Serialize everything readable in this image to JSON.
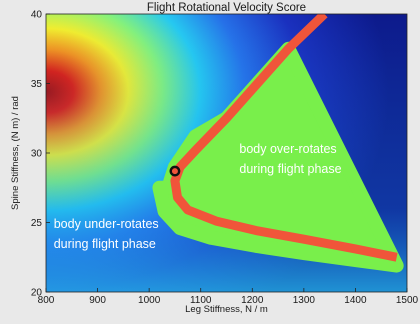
{
  "chart_data": {
    "type": "heatmap",
    "title": "Flight Rotational Velocity Score",
    "xlabel": "Leg Stiffness, N / m",
    "ylabel": "Spine Stiffness, (N m) / rad",
    "xlim": [
      800,
      1500
    ],
    "ylim": [
      20,
      40
    ],
    "xticks": [
      "800",
      "900",
      "1000",
      "1100",
      "1200",
      "1300",
      "1400",
      "1500"
    ],
    "yticks": [
      "20",
      "25",
      "30",
      "35",
      "40"
    ],
    "colormap": "jet",
    "colors": {
      "optimal_line": "#f0553a",
      "tolerance_band": "#79ef4b",
      "marker": "#111111"
    },
    "optimal_curve": {
      "name": "",
      "x": [
        1340,
        1270,
        1210,
        1150,
        1090,
        1060,
        1050,
        1055,
        1075,
        1130,
        1210,
        1300,
        1400,
        1480
      ],
      "y": [
        40,
        37.5,
        35,
        32.5,
        30.2,
        29.0,
        28.0,
        26.8,
        25.9,
        25.1,
        24.4,
        23.8,
        23.1,
        22.5
      ]
    },
    "tolerance_band": {
      "upper": {
        "x": [
          1037,
          1050,
          1090,
          1150,
          1210,
          1270
        ],
        "y": [
          27.5,
          29.0,
          31.2,
          32.5,
          35,
          37.5
        ]
      },
      "lower": {
        "x": [
          1020,
          1030,
          1060,
          1120,
          1210,
          1300,
          1400,
          1480
        ],
        "y": [
          27.5,
          25.8,
          24.6,
          23.9,
          23.3,
          22.8,
          22.3,
          21.9
        ]
      }
    },
    "marker": {
      "x": 1050,
      "y": 28.7
    },
    "annotations": [
      {
        "lines": [
          "body over-rotates",
          "during flight phase"
        ],
        "x": 1175,
        "y": 30.0
      },
      {
        "lines": [
          "body under-rotates",
          "during flight phase"
        ],
        "x": 815,
        "y": 24.6
      }
    ]
  }
}
